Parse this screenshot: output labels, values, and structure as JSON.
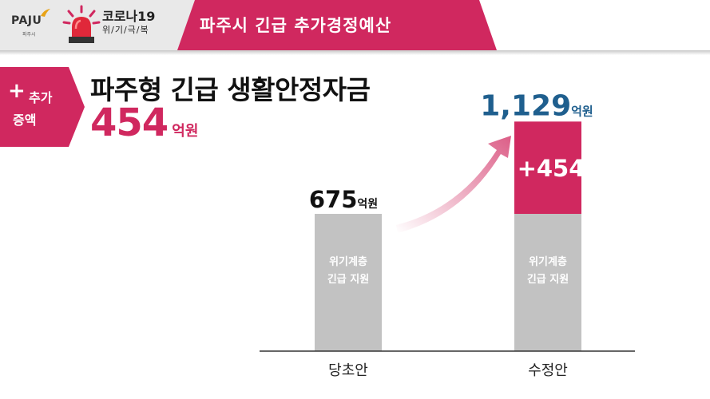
{
  "header": {
    "logo_text": "PAJU",
    "logo_sub": "파주시",
    "badge_title": "코로나19",
    "badge_sub": "위/기/극/복",
    "title": "파주시  긴급  추가경정예산"
  },
  "tag": {
    "plus": "+",
    "line1": "추가",
    "line2": "증액"
  },
  "headline": {
    "title": "파주형 긴급 생활안정자금",
    "amount": "454",
    "unit": "억원"
  },
  "colors": {
    "accent": "#d0285f",
    "bar_base": "#c2c2c2",
    "total_label": "#1f5f8e",
    "header_grey": "#e9e9e9"
  },
  "icons": [
    "siren-icon",
    "paju-logo-icon",
    "arrow-icon"
  ],
  "chart_data": {
    "type": "bar",
    "stacked": true,
    "categories": [
      "당초안",
      "수정안"
    ],
    "series": [
      {
        "name": "위기계층 긴급 지원",
        "values": [
          675,
          675
        ]
      },
      {
        "name": "+454",
        "values": [
          0,
          454
        ]
      }
    ],
    "base_label_line1": "위기계층",
    "base_label_line2": "긴급 지원",
    "increase_label": "+454",
    "totals": [
      {
        "value": "675",
        "unit": "억원"
      },
      {
        "value": "1,129",
        "unit": "억원"
      }
    ],
    "unit": "억원",
    "ylim": [
      0,
      1250
    ],
    "grid": false,
    "legend": "none"
  }
}
